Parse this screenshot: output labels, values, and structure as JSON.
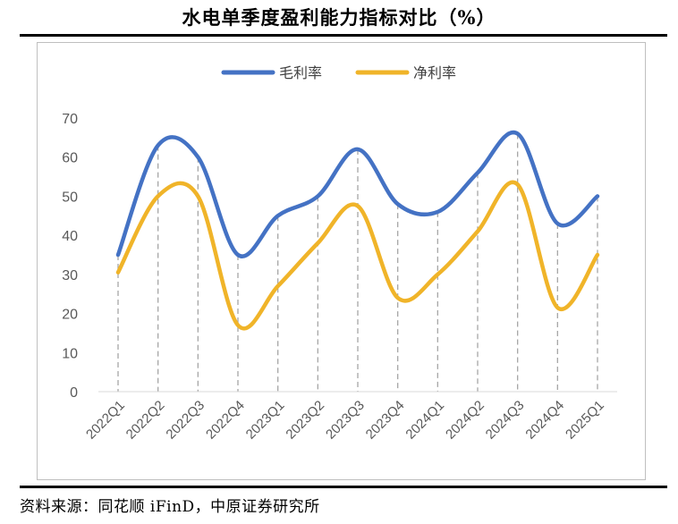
{
  "title": "水电单季度盈利能力指标对比（%）",
  "source": "资料来源：同花顺 iFinD，中原证券研究所",
  "chart_data": {
    "type": "line",
    "title": "水电单季度盈利能力指标对比（%）",
    "xlabel": "",
    "ylabel": "",
    "categories": [
      "2022Q1",
      "2022Q2",
      "2022Q3",
      "2022Q4",
      "2023Q1",
      "2023Q2",
      "2023Q3",
      "2023Q4",
      "2024Q1",
      "2024Q2",
      "2024Q3",
      "2024Q4",
      "2025Q1"
    ],
    "ylim": [
      0,
      70
    ],
    "yticks": [
      0,
      10,
      20,
      30,
      40,
      50,
      60,
      70
    ],
    "legend_position": "top",
    "vertical_drop_lines": true,
    "smooth": true,
    "series": [
      {
        "name": "毛利率",
        "color": "#4472c4",
        "values": [
          35,
          63,
          60,
          35,
          45,
          50,
          62,
          48,
          46,
          56,
          66,
          43,
          50
        ]
      },
      {
        "name": "净利率",
        "color": "#f0b429",
        "values": [
          30.5,
          50,
          50,
          17,
          27,
          38,
          47.5,
          24,
          30,
          41,
          53,
          21.5,
          35
        ]
      }
    ]
  }
}
